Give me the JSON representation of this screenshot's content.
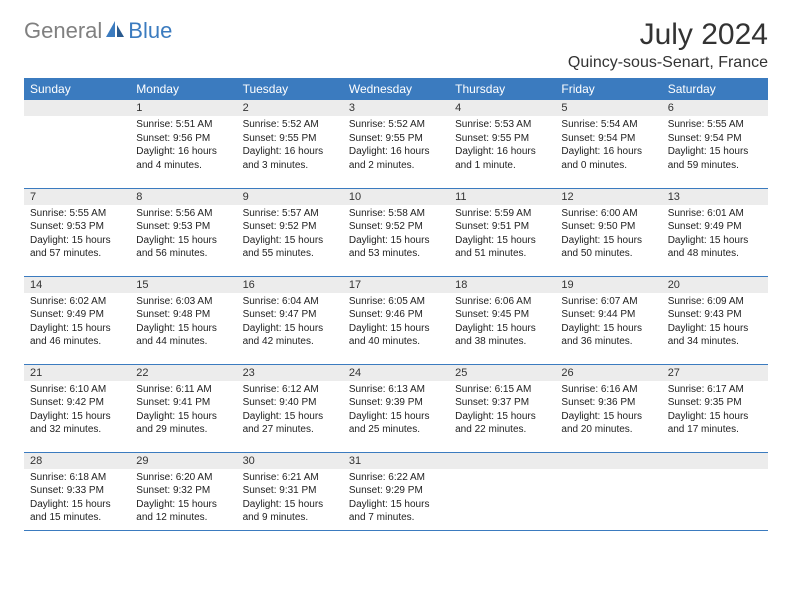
{
  "logo": {
    "part1": "General",
    "part2": "Blue"
  },
  "title": "July 2024",
  "location": "Quincy-sous-Senart, France",
  "colors": {
    "header_bg": "#3b7bbf",
    "header_text": "#ffffff",
    "daynum_bg": "#ececec",
    "border": "#3b7bbf",
    "logo_gray": "#808080",
    "logo_blue": "#3b7bbf",
    "title_color": "#333333",
    "body_text": "#222222",
    "background": "#ffffff"
  },
  "typography": {
    "title_fontsize": 30,
    "location_fontsize": 16,
    "dayheader_fontsize": 12,
    "daynum_fontsize": 11,
    "daydata_fontsize": 10,
    "logo_fontsize": 22
  },
  "day_headers": [
    "Sunday",
    "Monday",
    "Tuesday",
    "Wednesday",
    "Thursday",
    "Friday",
    "Saturday"
  ],
  "weeks": [
    [
      {
        "num": "",
        "lines": []
      },
      {
        "num": "1",
        "lines": [
          "Sunrise: 5:51 AM",
          "Sunset: 9:56 PM",
          "Daylight: 16 hours",
          "and 4 minutes."
        ]
      },
      {
        "num": "2",
        "lines": [
          "Sunrise: 5:52 AM",
          "Sunset: 9:55 PM",
          "Daylight: 16 hours",
          "and 3 minutes."
        ]
      },
      {
        "num": "3",
        "lines": [
          "Sunrise: 5:52 AM",
          "Sunset: 9:55 PM",
          "Daylight: 16 hours",
          "and 2 minutes."
        ]
      },
      {
        "num": "4",
        "lines": [
          "Sunrise: 5:53 AM",
          "Sunset: 9:55 PM",
          "Daylight: 16 hours",
          "and 1 minute."
        ]
      },
      {
        "num": "5",
        "lines": [
          "Sunrise: 5:54 AM",
          "Sunset: 9:54 PM",
          "Daylight: 16 hours",
          "and 0 minutes."
        ]
      },
      {
        "num": "6",
        "lines": [
          "Sunrise: 5:55 AM",
          "Sunset: 9:54 PM",
          "Daylight: 15 hours",
          "and 59 minutes."
        ]
      }
    ],
    [
      {
        "num": "7",
        "lines": [
          "Sunrise: 5:55 AM",
          "Sunset: 9:53 PM",
          "Daylight: 15 hours",
          "and 57 minutes."
        ]
      },
      {
        "num": "8",
        "lines": [
          "Sunrise: 5:56 AM",
          "Sunset: 9:53 PM",
          "Daylight: 15 hours",
          "and 56 minutes."
        ]
      },
      {
        "num": "9",
        "lines": [
          "Sunrise: 5:57 AM",
          "Sunset: 9:52 PM",
          "Daylight: 15 hours",
          "and 55 minutes."
        ]
      },
      {
        "num": "10",
        "lines": [
          "Sunrise: 5:58 AM",
          "Sunset: 9:52 PM",
          "Daylight: 15 hours",
          "and 53 minutes."
        ]
      },
      {
        "num": "11",
        "lines": [
          "Sunrise: 5:59 AM",
          "Sunset: 9:51 PM",
          "Daylight: 15 hours",
          "and 51 minutes."
        ]
      },
      {
        "num": "12",
        "lines": [
          "Sunrise: 6:00 AM",
          "Sunset: 9:50 PM",
          "Daylight: 15 hours",
          "and 50 minutes."
        ]
      },
      {
        "num": "13",
        "lines": [
          "Sunrise: 6:01 AM",
          "Sunset: 9:49 PM",
          "Daylight: 15 hours",
          "and 48 minutes."
        ]
      }
    ],
    [
      {
        "num": "14",
        "lines": [
          "Sunrise: 6:02 AM",
          "Sunset: 9:49 PM",
          "Daylight: 15 hours",
          "and 46 minutes."
        ]
      },
      {
        "num": "15",
        "lines": [
          "Sunrise: 6:03 AM",
          "Sunset: 9:48 PM",
          "Daylight: 15 hours",
          "and 44 minutes."
        ]
      },
      {
        "num": "16",
        "lines": [
          "Sunrise: 6:04 AM",
          "Sunset: 9:47 PM",
          "Daylight: 15 hours",
          "and 42 minutes."
        ]
      },
      {
        "num": "17",
        "lines": [
          "Sunrise: 6:05 AM",
          "Sunset: 9:46 PM",
          "Daylight: 15 hours",
          "and 40 minutes."
        ]
      },
      {
        "num": "18",
        "lines": [
          "Sunrise: 6:06 AM",
          "Sunset: 9:45 PM",
          "Daylight: 15 hours",
          "and 38 minutes."
        ]
      },
      {
        "num": "19",
        "lines": [
          "Sunrise: 6:07 AM",
          "Sunset: 9:44 PM",
          "Daylight: 15 hours",
          "and 36 minutes."
        ]
      },
      {
        "num": "20",
        "lines": [
          "Sunrise: 6:09 AM",
          "Sunset: 9:43 PM",
          "Daylight: 15 hours",
          "and 34 minutes."
        ]
      }
    ],
    [
      {
        "num": "21",
        "lines": [
          "Sunrise: 6:10 AM",
          "Sunset: 9:42 PM",
          "Daylight: 15 hours",
          "and 32 minutes."
        ]
      },
      {
        "num": "22",
        "lines": [
          "Sunrise: 6:11 AM",
          "Sunset: 9:41 PM",
          "Daylight: 15 hours",
          "and 29 minutes."
        ]
      },
      {
        "num": "23",
        "lines": [
          "Sunrise: 6:12 AM",
          "Sunset: 9:40 PM",
          "Daylight: 15 hours",
          "and 27 minutes."
        ]
      },
      {
        "num": "24",
        "lines": [
          "Sunrise: 6:13 AM",
          "Sunset: 9:39 PM",
          "Daylight: 15 hours",
          "and 25 minutes."
        ]
      },
      {
        "num": "25",
        "lines": [
          "Sunrise: 6:15 AM",
          "Sunset: 9:37 PM",
          "Daylight: 15 hours",
          "and 22 minutes."
        ]
      },
      {
        "num": "26",
        "lines": [
          "Sunrise: 6:16 AM",
          "Sunset: 9:36 PM",
          "Daylight: 15 hours",
          "and 20 minutes."
        ]
      },
      {
        "num": "27",
        "lines": [
          "Sunrise: 6:17 AM",
          "Sunset: 9:35 PM",
          "Daylight: 15 hours",
          "and 17 minutes."
        ]
      }
    ],
    [
      {
        "num": "28",
        "lines": [
          "Sunrise: 6:18 AM",
          "Sunset: 9:33 PM",
          "Daylight: 15 hours",
          "and 15 minutes."
        ]
      },
      {
        "num": "29",
        "lines": [
          "Sunrise: 6:20 AM",
          "Sunset: 9:32 PM",
          "Daylight: 15 hours",
          "and 12 minutes."
        ]
      },
      {
        "num": "30",
        "lines": [
          "Sunrise: 6:21 AM",
          "Sunset: 9:31 PM",
          "Daylight: 15 hours",
          "and 9 minutes."
        ]
      },
      {
        "num": "31",
        "lines": [
          "Sunrise: 6:22 AM",
          "Sunset: 9:29 PM",
          "Daylight: 15 hours",
          "and 7 minutes."
        ]
      },
      {
        "num": "",
        "lines": []
      },
      {
        "num": "",
        "lines": []
      },
      {
        "num": "",
        "lines": []
      }
    ]
  ]
}
